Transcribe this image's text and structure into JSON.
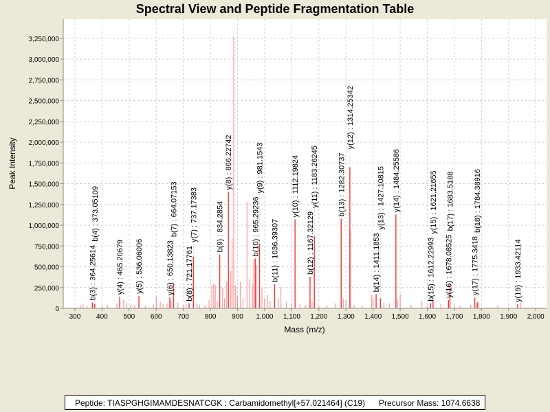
{
  "chart_data": {
    "type": "bar",
    "title": "Spectral View and Peptide Fragmentation Table",
    "xlabel": "Mass (m/z)",
    "ylabel": "Peak Intensity",
    "xlim": [
      257,
      2040
    ],
    "ylim": [
      0,
      3480000
    ],
    "x_ticks": [
      300,
      400,
      500,
      600,
      700,
      800,
      900,
      1000,
      1100,
      1200,
      1300,
      1400,
      1500,
      1600,
      1700,
      1800,
      1900,
      2000
    ],
    "y_ticks": [
      0,
      250000,
      500000,
      750000,
      1000000,
      1250000,
      1500000,
      1750000,
      2000000,
      2250000,
      2500000,
      2750000,
      3000000,
      3250000
    ],
    "grid": true,
    "colors": {
      "peak": "#FF5555",
      "annotated_peak": "#FF3333",
      "grid": "#D0D0D0",
      "background": "#ECE9D8"
    },
    "annotated_peaks": [
      {
        "label": "b(3) : 364.25614",
        "mz": 364.26,
        "intensity": 70000
      },
      {
        "label": "b(4) : 373.05109",
        "mz": 373.05,
        "intensity": 55000
      },
      {
        "label": "y(4) : 465.20679",
        "mz": 465.21,
        "intensity": 140000
      },
      {
        "label": "y(5) : 536.06006",
        "mz": 536.06,
        "intensity": 150000
      },
      {
        "label": "y(6) : 650.13823",
        "mz": 650.14,
        "intensity": 130000
      },
      {
        "label": "b(7) : 664.07153",
        "mz": 664.07,
        "intensity": 300000
      },
      {
        "label": "b(8) : 721.17761",
        "mz": 721.18,
        "intensity": 60000
      },
      {
        "label": "y(7) : 737.17383",
        "mz": 737.17,
        "intensity": 620000
      },
      {
        "label": "b(9) : 834.2854",
        "mz": 834.29,
        "intensity": 650000
      },
      {
        "label": "y(8) : 866.22742",
        "mz": 866.23,
        "intensity": 1400000
      },
      {
        "label": "b(10) : 965.29236",
        "mz": 965.29,
        "intensity": 600000
      },
      {
        "label": "y(9) : 981.1543",
        "mz": 981.15,
        "intensity": 780000
      },
      {
        "label": "b(11) : 1036.39307",
        "mz": 1036.39,
        "intensity": 290000
      },
      {
        "label": "y(10) : 1112.19824",
        "mz": 1112.2,
        "intensity": 1070000
      },
      {
        "label": "b(12) : 1167.32129",
        "mz": 1167.32,
        "intensity": 380000
      },
      {
        "label": "y(11) : 1183.26245",
        "mz": 1183.26,
        "intensity": 870000
      },
      {
        "label": "b(13) : 1282.30737",
        "mz": 1282.31,
        "intensity": 1080000
      },
      {
        "label": "y(12) : 1314.25342",
        "mz": 1314.25,
        "intensity": 1700000
      },
      {
        "label": "b(14) : 1411.1853",
        "mz": 1411.19,
        "intensity": 170000
      },
      {
        "label": "y(13) : 1427.10815",
        "mz": 1427.11,
        "intensity": 120000
      },
      {
        "label": "y(14) : 1484.25586",
        "mz": 1484.26,
        "intensity": 1130000
      },
      {
        "label": "b(15) : 1612.22993",
        "mz": 1612.23,
        "intensity": 60000
      },
      {
        "label": "y(15) : 1621.21655",
        "mz": 1621.22,
        "intensity": 90000
      },
      {
        "label": "y(16) : 1678.08525",
        "mz": 1678.09,
        "intensity": 100000
      },
      {
        "label": "b(17) : 1683.5188",
        "mz": 1683.52,
        "intensity": 290000
      },
      {
        "label": "y(17) : 1775.3418",
        "mz": 1775.34,
        "intensity": 130000
      },
      {
        "label": "b(18) : 1784.38916",
        "mz": 1784.39,
        "intensity": 70000
      },
      {
        "label": "y(19) : 1933.42114",
        "mz": 1933.42,
        "intensity": 50000
      }
    ],
    "peaks": [
      [
        320,
        40000
      ],
      [
        330,
        55000
      ],
      [
        345,
        30000
      ],
      [
        400,
        25000
      ],
      [
        420,
        40000
      ],
      [
        455,
        60000
      ],
      [
        480,
        110000
      ],
      [
        490,
        70000
      ],
      [
        505,
        40000
      ],
      [
        520,
        35000
      ],
      [
        560,
        30000
      ],
      [
        590,
        45000
      ],
      [
        600,
        140000
      ],
      [
        615,
        80000
      ],
      [
        625,
        50000
      ],
      [
        640,
        60000
      ],
      [
        655,
        90000
      ],
      [
        680,
        70000
      ],
      [
        700,
        40000
      ],
      [
        710,
        50000
      ],
      [
        750,
        60000
      ],
      [
        760,
        40000
      ],
      [
        780,
        30000
      ],
      [
        795,
        100000
      ],
      [
        805,
        280000
      ],
      [
        812,
        300000
      ],
      [
        818,
        280000
      ],
      [
        825,
        90000
      ],
      [
        845,
        250000
      ],
      [
        852,
        120000
      ],
      [
        860,
        320000
      ],
      [
        875,
        450000
      ],
      [
        880,
        850000
      ],
      [
        886,
        3270000
      ],
      [
        893,
        280000
      ],
      [
        900,
        150000
      ],
      [
        910,
        320000
      ],
      [
        920,
        120000
      ],
      [
        935,
        1280000
      ],
      [
        945,
        350000
      ],
      [
        955,
        300000
      ],
      [
        960,
        580000
      ],
      [
        970,
        520000
      ],
      [
        990,
        250000
      ],
      [
        1000,
        120000
      ],
      [
        1010,
        160000
      ],
      [
        1020,
        90000
      ],
      [
        1050,
        120000
      ],
      [
        1060,
        260000
      ],
      [
        1080,
        80000
      ],
      [
        1100,
        60000
      ],
      [
        1130,
        50000
      ],
      [
        1150,
        40000
      ],
      [
        1175,
        80000
      ],
      [
        1200,
        30000
      ],
      [
        1230,
        40000
      ],
      [
        1260,
        60000
      ],
      [
        1290,
        120000
      ],
      [
        1300,
        90000
      ],
      [
        1316,
        940000
      ],
      [
        1330,
        40000
      ],
      [
        1360,
        30000
      ],
      [
        1395,
        160000
      ],
      [
        1400,
        120000
      ],
      [
        1440,
        70000
      ],
      [
        1460,
        60000
      ],
      [
        1490,
        110000
      ],
      [
        1500,
        170000
      ],
      [
        1540,
        40000
      ],
      [
        1580,
        90000
      ],
      [
        1600,
        30000
      ],
      [
        1650,
        50000
      ],
      [
        1700,
        40000
      ],
      [
        1720,
        30000
      ],
      [
        1760,
        40000
      ],
      [
        1790,
        80000
      ],
      [
        1860,
        40000
      ],
      [
        1945,
        80000
      ]
    ]
  },
  "footer": {
    "peptide": "Peptide: TIASPGHGIMAMDESNATCGK : Carbamidomethyl[+57.021464] (C19)",
    "precursor": "Precursor Mass: 1074.6638"
  }
}
